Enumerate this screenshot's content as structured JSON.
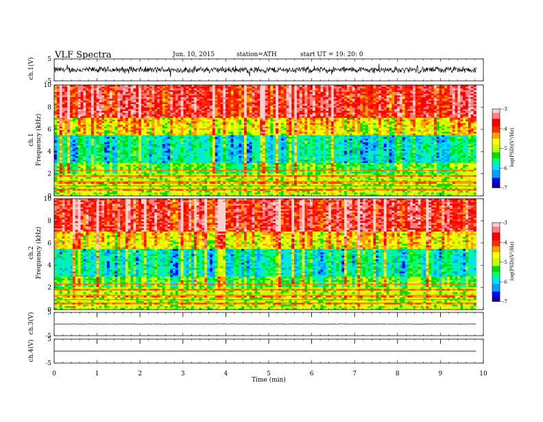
{
  "header": {
    "title": "VLF  Spectra",
    "date": "Jun. 10, 2015",
    "station": "station=ATH",
    "start": "start  UT  =   19: 20: 0"
  },
  "chart_data": [
    {
      "type": "line",
      "name": "ch1-waveform",
      "ylabel": "ch.1(V)",
      "ylim": [
        -5,
        5
      ],
      "yticks": [
        "5",
        "-5"
      ],
      "xlim": [
        0,
        10
      ],
      "baseline": 0,
      "amplitude": 1.2
    },
    {
      "type": "heatmap",
      "name": "ch1-spectrogram",
      "ylabel_channel": "ch.1",
      "ylabel": "Frequency  (kHz)",
      "ylim": [
        0,
        10
      ],
      "yticks": [
        "0",
        "2",
        "4",
        "6",
        "8",
        "10"
      ],
      "xlim": [
        0,
        10
      ],
      "data_end_min": 9.83,
      "colorbar": {
        "label": "log(PSD)(V²/Hz)",
        "range": [
          -7,
          -3
        ],
        "ticks": [
          "-3",
          "-4",
          "-5",
          "-6",
          "-7"
        ]
      }
    },
    {
      "type": "heatmap",
      "name": "ch2-spectrogram",
      "ylabel_channel": "ch.2",
      "ylabel": "Frequency  (kHz)",
      "ylim": [
        0,
        10
      ],
      "yticks": [
        "0",
        "2",
        "4",
        "6",
        "8",
        "10"
      ],
      "xlim": [
        0,
        10
      ],
      "data_end_min": 9.83,
      "colorbar": {
        "label": "log(PSD)(V²/Hz)",
        "range": [
          -7,
          -3
        ],
        "ticks": [
          "-3",
          "-4",
          "-5",
          "-6",
          "-7"
        ]
      }
    },
    {
      "type": "line",
      "name": "ch3-waveform",
      "ylabel": "ch.3(V)",
      "ylim": [
        -5,
        5
      ],
      "yticks": [
        "5",
        "-5"
      ],
      "xlim": [
        0,
        10
      ],
      "baseline": 0,
      "amplitude": 0.05
    },
    {
      "type": "line",
      "name": "ch4-waveform",
      "ylabel": "ch.4(V)",
      "ylim": [
        -5,
        5
      ],
      "yticks": [
        "5",
        "-5"
      ],
      "xlim": [
        0,
        10
      ],
      "baseline": 0,
      "amplitude": 0
    }
  ],
  "xaxis": {
    "label": "Time  (min)",
    "ticks": [
      "0",
      "1",
      "2",
      "3",
      "4",
      "5",
      "6",
      "7",
      "8",
      "9",
      "10"
    ]
  },
  "colors": {
    "colormap": [
      "#00008b",
      "#0000ff",
      "#00a0ff",
      "#00e0ff",
      "#00ff80",
      "#00e000",
      "#c0ff00",
      "#ffff00",
      "#ffa000",
      "#ff3000",
      "#ff0000",
      "#ff8080",
      "#ffd0d0"
    ]
  }
}
